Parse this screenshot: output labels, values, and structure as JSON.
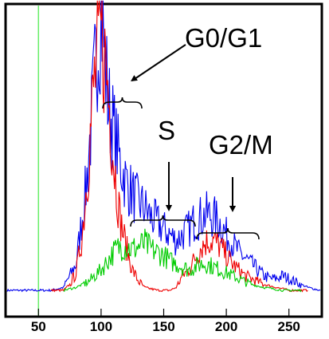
{
  "chart_data": {
    "type": "line",
    "title": "",
    "xlabel": "",
    "ylabel": "",
    "xlim": [
      25,
      275
    ],
    "ylim": [
      0,
      1
    ],
    "x_ticks": [
      "50",
      "100",
      "150",
      "200",
      "250"
    ],
    "x_tick_values": [
      50,
      100,
      150,
      200,
      250
    ],
    "grid": false,
    "legend": "none",
    "marker_line": {
      "x": 50,
      "color": "#66ee66"
    },
    "series": [
      {
        "color": "#0000ee",
        "points": [
          [
            25,
            0.03
          ],
          [
            60,
            0.03
          ],
          [
            70,
            0.04
          ],
          [
            80,
            0.12
          ],
          [
            88,
            0.38
          ],
          [
            93,
            0.65
          ],
          [
            97,
            0.88
          ],
          [
            100,
            1.0
          ],
          [
            103,
            0.82
          ],
          [
            106,
            0.66
          ],
          [
            110,
            0.58
          ],
          [
            115,
            0.47
          ],
          [
            120,
            0.4
          ],
          [
            125,
            0.36
          ],
          [
            130,
            0.33
          ],
          [
            135,
            0.31
          ],
          [
            140,
            0.28
          ],
          [
            145,
            0.26
          ],
          [
            150,
            0.24
          ],
          [
            155,
            0.22
          ],
          [
            160,
            0.2
          ],
          [
            165,
            0.22
          ],
          [
            170,
            0.24
          ],
          [
            175,
            0.27
          ],
          [
            180,
            0.28
          ],
          [
            185,
            0.29
          ],
          [
            190,
            0.28
          ],
          [
            195,
            0.26
          ],
          [
            200,
            0.22
          ],
          [
            205,
            0.19
          ],
          [
            210,
            0.16
          ],
          [
            215,
            0.14
          ],
          [
            220,
            0.12
          ],
          [
            225,
            0.1
          ],
          [
            230,
            0.08
          ],
          [
            235,
            0.07
          ],
          [
            240,
            0.07
          ],
          [
            245,
            0.08
          ],
          [
            250,
            0.07
          ],
          [
            255,
            0.06
          ],
          [
            260,
            0.05
          ],
          [
            265,
            0.04
          ],
          [
            275,
            0.03
          ]
        ]
      },
      {
        "color": "#ee0000",
        "points": [
          [
            60,
            0.03
          ],
          [
            70,
            0.03
          ],
          [
            75,
            0.05
          ],
          [
            80,
            0.09
          ],
          [
            85,
            0.22
          ],
          [
            90,
            0.48
          ],
          [
            94,
            0.72
          ],
          [
            97,
            0.82
          ],
          [
            100,
            0.9
          ],
          [
            103,
            0.82
          ],
          [
            106,
            0.7
          ],
          [
            110,
            0.48
          ],
          [
            115,
            0.28
          ],
          [
            120,
            0.18
          ],
          [
            125,
            0.1
          ],
          [
            130,
            0.06
          ],
          [
            135,
            0.04
          ],
          [
            145,
            0.03
          ],
          [
            155,
            0.03
          ],
          [
            160,
            0.04
          ],
          [
            165,
            0.08
          ],
          [
            170,
            0.1
          ],
          [
            175,
            0.14
          ],
          [
            180,
            0.18
          ],
          [
            185,
            0.2
          ],
          [
            190,
            0.2
          ],
          [
            195,
            0.18
          ],
          [
            200,
            0.15
          ],
          [
            205,
            0.12
          ],
          [
            210,
            0.1
          ],
          [
            215,
            0.08
          ],
          [
            220,
            0.07
          ],
          [
            225,
            0.06
          ],
          [
            230,
            0.05
          ],
          [
            240,
            0.04
          ],
          [
            250,
            0.03
          ],
          [
            265,
            0.03
          ]
        ]
      },
      {
        "color": "#00cc00",
        "points": [
          [
            70,
            0.03
          ],
          [
            80,
            0.04
          ],
          [
            90,
            0.06
          ],
          [
            100,
            0.1
          ],
          [
            110,
            0.16
          ],
          [
            115,
            0.18
          ],
          [
            120,
            0.18
          ],
          [
            125,
            0.17
          ],
          [
            130,
            0.18
          ],
          [
            135,
            0.19
          ],
          [
            140,
            0.17
          ],
          [
            145,
            0.16
          ],
          [
            150,
            0.15
          ],
          [
            155,
            0.13
          ],
          [
            160,
            0.12
          ],
          [
            165,
            0.11
          ],
          [
            170,
            0.1
          ],
          [
            175,
            0.11
          ],
          [
            180,
            0.12
          ],
          [
            185,
            0.12
          ],
          [
            190,
            0.11
          ],
          [
            195,
            0.1
          ],
          [
            200,
            0.09
          ],
          [
            210,
            0.07
          ],
          [
            220,
            0.05
          ],
          [
            230,
            0.04
          ],
          [
            245,
            0.03
          ],
          [
            260,
            0.03
          ]
        ]
      }
    ],
    "annotations": [
      {
        "text": "G0/G1",
        "color": "#000000"
      },
      {
        "text": "S",
        "color": "#000000"
      },
      {
        "text": "G2/M",
        "color": "#000000"
      }
    ]
  }
}
